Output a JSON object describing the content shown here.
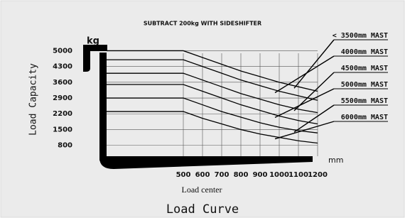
{
  "chart_data": {
    "type": "line",
    "title": "SUBTRACT 200kg WITH SIDESHIFTER",
    "ylabel": "Load Capacity",
    "y_unit": "kg",
    "xlabel": "Load center",
    "x_unit": "mm",
    "caption": "Load Curve",
    "x": [
      100,
      500,
      600,
      700,
      800,
      900,
      1000,
      1100,
      1200
    ],
    "series": [
      {
        "name": "< 3500mm MAST",
        "color": "#000000",
        "values": [
          5000,
          5000,
          4700,
          4400,
          4100,
          3850,
          3600,
          3400,
          3200
        ]
      },
      {
        "name": "4000mm MAST",
        "color": "#000000",
        "values": [
          4600,
          4600,
          4300,
          4000,
          3700,
          3450,
          3200,
          3000,
          2800
        ]
      },
      {
        "name": "4500mm MAST",
        "color": "#000000",
        "values": [
          4000,
          4000,
          3700,
          3400,
          3100,
          2850,
          2600,
          2400,
          2250
        ]
      },
      {
        "name": "5000mm MAST",
        "color": "#000000",
        "values": [
          3500,
          3500,
          3200,
          2900,
          2600,
          2350,
          2100,
          1900,
          1750
        ]
      },
      {
        "name": "5500mm MAST",
        "color": "#000000",
        "values": [
          2900,
          2900,
          2600,
          2300,
          2050,
          1800,
          1600,
          1450,
          1350
        ]
      },
      {
        "name": "6000mm MAST",
        "color": "#000000",
        "values": [
          2300,
          2300,
          2000,
          1750,
          1500,
          1300,
          1150,
          1000,
          900
        ]
      }
    ],
    "xlim": [
      100,
      1200
    ],
    "xticks": [
      500,
      600,
      700,
      800,
      900,
      1000,
      1100,
      1200
    ],
    "ylim": [
      0,
      5500
    ],
    "yticks": [
      800,
      1500,
      2200,
      2900,
      3600,
      4300,
      5000
    ],
    "grid": true
  }
}
